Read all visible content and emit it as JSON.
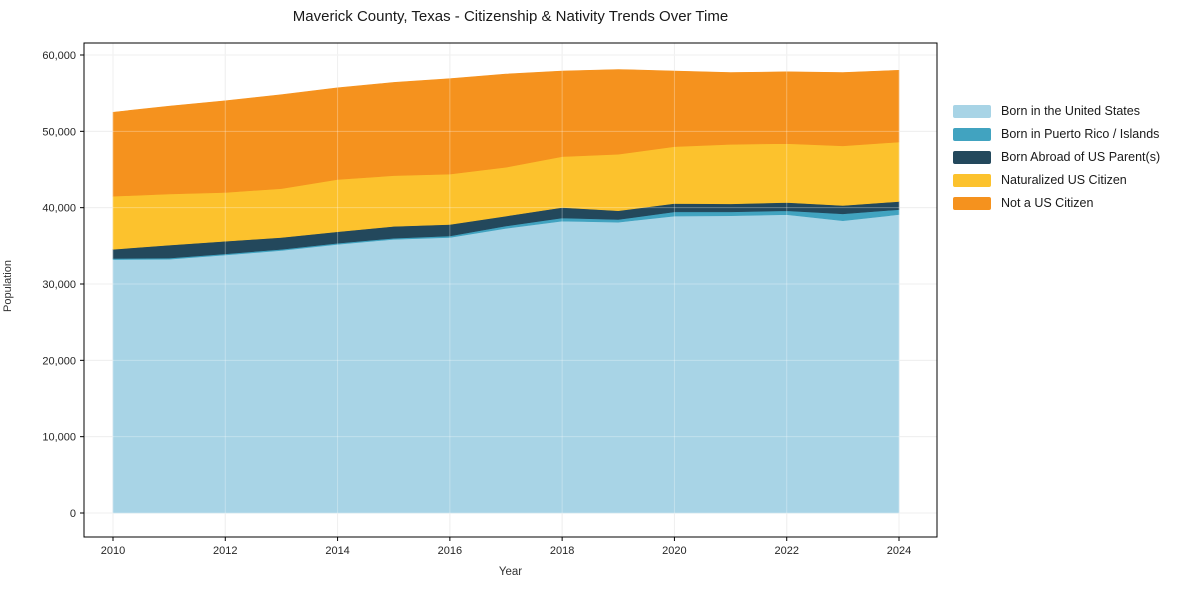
{
  "title": "Maverick County, Texas - Citizenship & Nativity Trends Over Time",
  "xlabel": "Year",
  "ylabel": "Population",
  "colors": {
    "us_born": "#a8d4e6",
    "pr_islands": "#41a3c0",
    "born_abroad": "#23485c",
    "naturalized": "#fcc22d",
    "not_citizen": "#f5921e",
    "grid": "#e8e8e8",
    "spine": "#000000",
    "tick_text": "#262626"
  },
  "axes": {
    "x_tick_values": [
      2010,
      2012,
      2014,
      2016,
      2018,
      2020,
      2022,
      2024
    ],
    "x_tick_labels": [
      "2010",
      "2012",
      "2014",
      "2016",
      "2018",
      "2020",
      "2022",
      "2024"
    ],
    "y_tick_values": [
      0,
      10000,
      20000,
      30000,
      40000,
      50000,
      60000
    ],
    "y_tick_labels": [
      "0",
      "10,000",
      "20,000",
      "30,000",
      "40,000",
      "50,000",
      "60,000"
    ]
  },
  "chart_data": {
    "type": "area",
    "stacked": true,
    "title": "Maverick County, Texas - Citizenship & Nativity Trends Over Time",
    "xlabel": "Year",
    "ylabel": "Population",
    "x": [
      2010,
      2011,
      2012,
      2013,
      2014,
      2015,
      2016,
      2017,
      2018,
      2019,
      2020,
      2021,
      2022,
      2023,
      2024
    ],
    "xlim": [
      2009.48,
      2024.68
    ],
    "ylim": [
      -3100,
      61300
    ],
    "grid": true,
    "legend_position": "right",
    "series": [
      {
        "name": "Born in the United States",
        "color": "#a8d4e6",
        "values": [
          33200,
          33250,
          33800,
          34400,
          35200,
          35850,
          36100,
          37300,
          38250,
          38100,
          38900,
          38950,
          39100,
          38300,
          39100
        ]
      },
      {
        "name": "Born in Puerto Rico / Islands",
        "color": "#41a3c0",
        "values": [
          150,
          150,
          150,
          150,
          150,
          150,
          200,
          300,
          400,
          350,
          550,
          500,
          500,
          900,
          650
        ]
      },
      {
        "name": "Born Abroad of US Parent(s)",
        "color": "#23485c",
        "values": [
          1200,
          1700,
          1650,
          1550,
          1500,
          1550,
          1500,
          1300,
          1380,
          1150,
          1100,
          1050,
          1080,
          1090,
          1060
        ]
      },
      {
        "name": "Naturalized US Citizen",
        "color": "#fcc22d",
        "values": [
          6950,
          6700,
          6400,
          6400,
          6850,
          6650,
          6600,
          6400,
          6670,
          7400,
          7450,
          7800,
          7720,
          7810,
          7790
        ]
      },
      {
        "name": "Not a US Citizen",
        "color": "#f5921e",
        "values": [
          11000,
          11500,
          12000,
          12300,
          12000,
          12200,
          12500,
          12200,
          11200,
          11100,
          9900,
          9400,
          9400,
          9600,
          9400
        ]
      }
    ]
  }
}
